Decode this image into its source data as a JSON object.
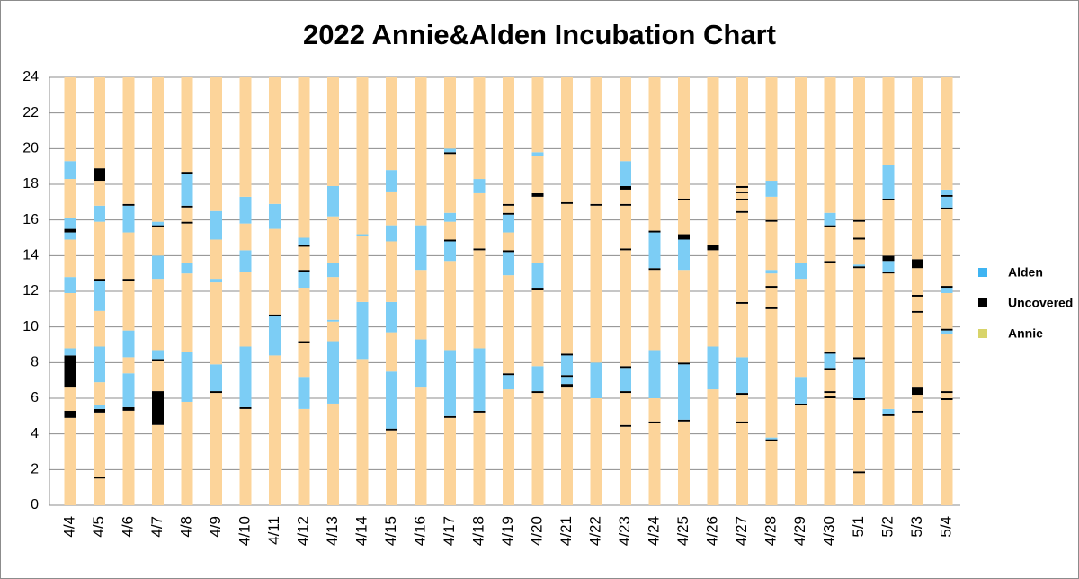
{
  "chart_data": {
    "type": "stacked-segments",
    "title": "2022 Annie&Alden Incubation Chart",
    "categories": [
      "4/4",
      "4/5",
      "4/6",
      "4/7",
      "4/8",
      "4/9",
      "4/10",
      "4/11",
      "4/12",
      "4/13",
      "4/14",
      "4/15",
      "4/16",
      "4/17",
      "4/18",
      "4/19",
      "4/20",
      "4/21",
      "4/22",
      "4/23",
      "4/24",
      "4/25",
      "4/26",
      "4/27",
      "4/28",
      "4/29",
      "4/30",
      "5/1",
      "5/2",
      "5/3",
      "5/4"
    ],
    "series": [
      {
        "name": "Alden",
        "color": "#7ccdf5",
        "legend_color": "#3fb4f2"
      },
      {
        "name": "Uncovered",
        "color": "#000000",
        "legend_color": "#000000"
      },
      {
        "name": "Annie",
        "color": "#fcd49a",
        "legend_color": "#d8d46a"
      }
    ],
    "segments": [
      [
        [
          2,
          4.9
        ],
        [
          1,
          0.4
        ],
        [
          2,
          1.3
        ],
        [
          1,
          1.8
        ],
        [
          0,
          0.4
        ],
        [
          2,
          3.1
        ],
        [
          0,
          0.9
        ],
        [
          2,
          2.1
        ],
        [
          0,
          0.4
        ],
        [
          1,
          0.2
        ],
        [
          0,
          0.6
        ],
        [
          2,
          2.2
        ],
        [
          0,
          1.0
        ],
        [
          2,
          4.7
        ]
      ],
      [
        [
          2,
          1.5
        ],
        [
          1,
          0.1
        ],
        [
          2,
          3.6
        ],
        [
          1,
          0.2
        ],
        [
          0,
          0.2
        ],
        [
          2,
          1.3
        ],
        [
          0,
          2.0
        ],
        [
          2,
          2.0
        ],
        [
          0,
          1.7
        ],
        [
          1,
          0.1
        ],
        [
          2,
          3.2
        ],
        [
          0,
          0.9
        ],
        [
          2,
          1.4
        ],
        [
          1,
          0.7
        ],
        [
          2,
          5.1
        ]
      ],
      [
        [
          2,
          5.3
        ],
        [
          1,
          0.2
        ],
        [
          0,
          1.9
        ],
        [
          2,
          0.9
        ],
        [
          0,
          1.5
        ],
        [
          2,
          2.8
        ],
        [
          1,
          0.1
        ],
        [
          2,
          2.6
        ],
        [
          0,
          1.5
        ],
        [
          1,
          0.1
        ],
        [
          2,
          7.1
        ]
      ],
      [
        [
          2,
          4.5
        ],
        [
          1,
          1.9
        ],
        [
          2,
          1.7
        ],
        [
          1,
          0.1
        ],
        [
          0,
          0.5
        ],
        [
          2,
          4.0
        ],
        [
          0,
          1.3
        ],
        [
          2,
          1.6
        ],
        [
          1,
          0.1
        ],
        [
          0,
          0.2
        ],
        [
          2,
          8.1
        ]
      ],
      [
        [
          2,
          5.8
        ],
        [
          0,
          2.8
        ],
        [
          2,
          4.4
        ],
        [
          0,
          0.6
        ],
        [
          2,
          2.2
        ],
        [
          1,
          0.1
        ],
        [
          2,
          0.8
        ],
        [
          1,
          0.1
        ],
        [
          0,
          1.8
        ],
        [
          1,
          0.1
        ],
        [
          2,
          5.3
        ]
      ],
      [
        [
          2,
          6.3
        ],
        [
          1,
          0.1
        ],
        [
          0,
          1.5
        ],
        [
          2,
          4.6
        ],
        [
          0,
          0.2
        ],
        [
          2,
          2.2
        ],
        [
          0,
          1.6
        ],
        [
          2,
          7.5
        ]
      ],
      [
        [
          2,
          5.4
        ],
        [
          1,
          0.1
        ],
        [
          0,
          3.4
        ],
        [
          2,
          4.2
        ],
        [
          0,
          1.2
        ],
        [
          2,
          1.5
        ],
        [
          0,
          1.5
        ],
        [
          2,
          6.7
        ]
      ],
      [
        [
          2,
          8.4
        ],
        [
          0,
          2.2
        ],
        [
          1,
          0.1
        ],
        [
          2,
          4.8
        ],
        [
          0,
          1.4
        ],
        [
          2,
          7.1
        ]
      ],
      [
        [
          2,
          5.4
        ],
        [
          0,
          1.8
        ],
        [
          2,
          1.9
        ],
        [
          1,
          0.1
        ],
        [
          2,
          3.0
        ],
        [
          0,
          0.9
        ],
        [
          1,
          0.1
        ],
        [
          2,
          1.3
        ],
        [
          1,
          0.1
        ],
        [
          0,
          0.4
        ],
        [
          2,
          9.0
        ]
      ],
      [
        [
          2,
          5.7
        ],
        [
          0,
          3.5
        ],
        [
          2,
          1.1
        ],
        [
          0,
          0.1
        ],
        [
          2,
          2.4
        ],
        [
          0,
          0.8
        ],
        [
          2,
          2.6
        ],
        [
          0,
          1.7
        ],
        [
          2,
          6.1
        ]
      ],
      [
        [
          2,
          8.2
        ],
        [
          0,
          3.2
        ],
        [
          2,
          3.7
        ],
        [
          0,
          0.1
        ],
        [
          2,
          8.8
        ]
      ],
      [
        [
          2,
          4.2
        ],
        [
          1,
          0.1
        ],
        [
          0,
          3.2
        ],
        [
          2,
          2.2
        ],
        [
          0,
          1.7
        ],
        [
          2,
          3.4
        ],
        [
          0,
          0.9
        ],
        [
          2,
          1.9
        ],
        [
          0,
          1.2
        ],
        [
          2,
          5.2
        ]
      ],
      [
        [
          2,
          6.6
        ],
        [
          0,
          2.7
        ],
        [
          2,
          3.9
        ],
        [
          0,
          2.5
        ],
        [
          2,
          8.3
        ]
      ],
      [
        [
          2,
          4.9
        ],
        [
          1,
          0.1
        ],
        [
          0,
          3.7
        ],
        [
          2,
          5.0
        ],
        [
          0,
          1.1
        ],
        [
          1,
          0.1
        ],
        [
          2,
          1.0
        ],
        [
          0,
          0.5
        ],
        [
          2,
          3.3
        ],
        [
          1,
          0.1
        ],
        [
          0,
          0.2
        ],
        [
          2,
          4.0
        ]
      ],
      [
        [
          2,
          5.2
        ],
        [
          1,
          0.1
        ],
        [
          0,
          3.5
        ],
        [
          2,
          5.5
        ],
        [
          1,
          0.1
        ],
        [
          2,
          3.1
        ],
        [
          0,
          0.8
        ],
        [
          2,
          5.7
        ]
      ],
      [
        [
          2,
          6.5
        ],
        [
          0,
          0.8
        ],
        [
          1,
          0.1
        ],
        [
          2,
          5.5
        ],
        [
          0,
          1.3
        ],
        [
          1,
          0.1
        ],
        [
          2,
          1.0
        ],
        [
          0,
          1.0
        ],
        [
          1,
          0.1
        ],
        [
          2,
          0.4
        ],
        [
          1,
          0.1
        ],
        [
          2,
          7.1
        ]
      ],
      [
        [
          2,
          6.3
        ],
        [
          1,
          0.1
        ],
        [
          0,
          1.4
        ],
        [
          2,
          4.3
        ],
        [
          1,
          0.1
        ],
        [
          0,
          1.4
        ],
        [
          2,
          3.7
        ],
        [
          1,
          0.2
        ],
        [
          2,
          2.1
        ],
        [
          0,
          0.2
        ],
        [
          2,
          4.2
        ]
      ],
      [
        [
          2,
          6.6
        ],
        [
          1,
          0.2
        ],
        [
          0,
          0.4
        ],
        [
          1,
          0.1
        ],
        [
          0,
          1.1
        ],
        [
          1,
          0.1
        ],
        [
          2,
          8.4
        ],
        [
          1,
          0.1
        ],
        [
          2,
          7.0
        ]
      ],
      [
        [
          2,
          6.0
        ],
        [
          0,
          2.0
        ],
        [
          2,
          8.8
        ],
        [
          1,
          0.1
        ],
        [
          2,
          7.1
        ]
      ],
      [
        [
          2,
          4.4
        ],
        [
          1,
          0.1
        ],
        [
          2,
          1.8
        ],
        [
          1,
          0.1
        ],
        [
          0,
          1.3
        ],
        [
          1,
          0.1
        ],
        [
          2,
          6.5
        ],
        [
          1,
          0.1
        ],
        [
          2,
          2.4
        ],
        [
          1,
          0.1
        ],
        [
          2,
          0.8
        ],
        [
          1,
          0.2
        ],
        [
          0,
          1.4
        ],
        [
          2,
          4.7
        ]
      ],
      [
        [
          2,
          4.6
        ],
        [
          1,
          0.1
        ],
        [
          2,
          1.3
        ],
        [
          0,
          2.7
        ],
        [
          2,
          4.5
        ],
        [
          1,
          0.1
        ],
        [
          0,
          2.0
        ],
        [
          1,
          0.1
        ],
        [
          2,
          8.6
        ]
      ],
      [
        [
          2,
          4.7
        ],
        [
          1,
          0.1
        ],
        [
          0,
          3.1
        ],
        [
          1,
          0.1
        ],
        [
          2,
          5.2
        ],
        [
          0,
          1.7
        ],
        [
          1,
          0.3
        ],
        [
          2,
          1.9
        ],
        [
          1,
          0.1
        ],
        [
          2,
          6.8
        ]
      ],
      [
        [
          2,
          6.5
        ],
        [
          0,
          2.4
        ],
        [
          2,
          5.4
        ],
        [
          1,
          0.3
        ],
        [
          2,
          9.4
        ]
      ],
      [
        [
          2,
          4.6
        ],
        [
          1,
          0.1
        ],
        [
          2,
          1.5
        ],
        [
          1,
          0.1
        ],
        [
          0,
          2.0
        ],
        [
          2,
          3.0
        ],
        [
          1,
          0.1
        ],
        [
          2,
          5.0
        ],
        [
          1,
          0.1
        ],
        [
          2,
          0.6
        ],
        [
          1,
          0.1
        ],
        [
          2,
          0.3
        ],
        [
          1,
          0.1
        ],
        [
          2,
          0.2
        ],
        [
          1,
          0.1
        ],
        [
          2,
          6.1
        ]
      ],
      [
        [
          2,
          3.6
        ],
        [
          1,
          0.1
        ],
        [
          0,
          0.1
        ],
        [
          2,
          7.2
        ],
        [
          1,
          0.1
        ],
        [
          2,
          1.1
        ],
        [
          1,
          0.1
        ],
        [
          2,
          0.7
        ],
        [
          0,
          0.2
        ],
        [
          2,
          2.7
        ],
        [
          1,
          0.1
        ],
        [
          2,
          1.3
        ],
        [
          0,
          0.9
        ],
        [
          2,
          5.8
        ]
      ],
      [
        [
          2,
          5.6
        ],
        [
          1,
          0.1
        ],
        [
          0,
          1.5
        ],
        [
          2,
          5.5
        ],
        [
          0,
          0.9
        ],
        [
          2,
          10.4
        ]
      ],
      [
        [
          2,
          6.0
        ],
        [
          1,
          0.1
        ],
        [
          2,
          0.2
        ],
        [
          1,
          0.1
        ],
        [
          2,
          1.2
        ],
        [
          1,
          0.1
        ],
        [
          0,
          0.8
        ],
        [
          1,
          0.1
        ],
        [
          2,
          5.0
        ],
        [
          1,
          0.1
        ],
        [
          2,
          1.9
        ],
        [
          1,
          0.1
        ],
        [
          0,
          0.7
        ],
        [
          2,
          7.6
        ]
      ],
      [
        [
          2,
          1.8
        ],
        [
          1,
          0.1
        ],
        [
          2,
          4.0
        ],
        [
          1,
          0.1
        ],
        [
          0,
          2.2
        ],
        [
          1,
          0.1
        ],
        [
          2,
          5.0
        ],
        [
          1,
          0.1
        ],
        [
          0,
          0.1
        ],
        [
          2,
          1.4
        ],
        [
          1,
          0.1
        ],
        [
          2,
          0.9
        ],
        [
          1,
          0.1
        ],
        [
          2,
          8.0
        ]
      ],
      [
        [
          2,
          5.0
        ],
        [
          1,
          0.1
        ],
        [
          0,
          0.3
        ],
        [
          2,
          7.6
        ],
        [
          1,
          0.1
        ],
        [
          0,
          0.6
        ],
        [
          1,
          0.3
        ],
        [
          2,
          3.1
        ],
        [
          1,
          0.1
        ],
        [
          0,
          1.9
        ],
        [
          2,
          4.9
        ]
      ],
      [
        [
          2,
          5.2
        ],
        [
          1,
          0.1
        ],
        [
          2,
          0.9
        ],
        [
          1,
          0.4
        ],
        [
          2,
          4.2
        ],
        [
          1,
          0.1
        ],
        [
          2,
          0.8
        ],
        [
          1,
          0.1
        ],
        [
          2,
          1.5
        ],
        [
          1,
          0.5
        ],
        [
          2,
          10.2
        ]
      ],
      [
        [
          2,
          5.9
        ],
        [
          1,
          0.1
        ],
        [
          2,
          0.3
        ],
        [
          1,
          0.1
        ],
        [
          2,
          3.2
        ],
        [
          0,
          0.2
        ],
        [
          1,
          0.1
        ],
        [
          2,
          2.0
        ],
        [
          0,
          0.3
        ],
        [
          1,
          0.1
        ],
        [
          2,
          4.3
        ],
        [
          1,
          0.1
        ],
        [
          0,
          0.6
        ],
        [
          1,
          0.1
        ],
        [
          0,
          0.3
        ],
        [
          2,
          6.3
        ]
      ]
    ],
    "ylim": [
      0,
      24
    ],
    "yticks": [
      0,
      2,
      4,
      6,
      8,
      10,
      12,
      14,
      16,
      18,
      20,
      22,
      24
    ],
    "grid": true,
    "legend": "right"
  }
}
